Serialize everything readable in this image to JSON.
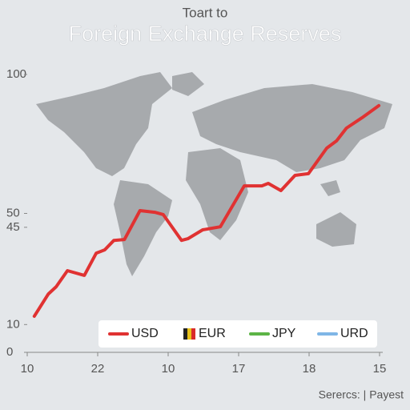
{
  "chart_data": {
    "type": "line",
    "supertitle": "Toart to",
    "title": "Foreign Exchange Reserves",
    "source": "Serercs: | Payest",
    "x": [
      0.1,
      0.3,
      0.41,
      0.57,
      0.81,
      0.98,
      1.1,
      1.23,
      1.38,
      1.6,
      1.81,
      1.93,
      2.19,
      2.28,
      2.49,
      2.74,
      3.08,
      3.33,
      3.42,
      3.6,
      3.8,
      3.99,
      4.25,
      4.39,
      4.53,
      4.75,
      4.99
    ],
    "xlim": [
      0,
      5
    ],
    "xticks": [
      {
        "value": 0,
        "label": "10"
      },
      {
        "value": 1,
        "label": "22"
      },
      {
        "value": 2,
        "label": "10"
      },
      {
        "value": 3,
        "label": "17"
      },
      {
        "value": 4,
        "label": "18"
      },
      {
        "value": 5,
        "label": "15"
      }
    ],
    "ylim": [
      0,
      100
    ],
    "yticks": [
      0,
      10,
      45,
      50,
      100
    ],
    "series": [
      {
        "name": "USD",
        "color": "#e03232",
        "values": [
          13.0,
          21.0,
          23.6,
          29.4,
          27.7,
          35.7,
          36.9,
          40.3,
          40.6,
          51.0,
          50.4,
          49.6,
          40.3,
          40.9,
          44.1,
          45.2,
          59.9,
          59.9,
          60.8,
          58.2,
          63.7,
          64.3,
          73.5,
          76.1,
          80.7,
          84.4,
          88.8
        ]
      },
      {
        "name": "EUR",
        "color": "#e8c21a",
        "values": [
          null,
          null,
          null,
          null,
          null,
          null,
          null,
          null,
          null,
          null,
          null,
          null,
          null,
          null,
          null,
          null,
          null,
          null,
          null,
          null,
          null,
          null,
          null,
          null,
          null,
          null,
          null
        ]
      },
      {
        "name": "JPY",
        "color": "#5cb446",
        "values": [
          null,
          null,
          null,
          null,
          null,
          null,
          null,
          null,
          null,
          null,
          null,
          null,
          null,
          null,
          null,
          null,
          null,
          null,
          null,
          null,
          null,
          null,
          null,
          null,
          null,
          null,
          null
        ]
      },
      {
        "name": "URD",
        "color": "#7fb6e6",
        "values": [
          null,
          null,
          null,
          null,
          null,
          null,
          null,
          null,
          null,
          null,
          null,
          null,
          null,
          null,
          null,
          null,
          null,
          null,
          null,
          null,
          null,
          null,
          null,
          null,
          null,
          null,
          null
        ]
      }
    ]
  }
}
